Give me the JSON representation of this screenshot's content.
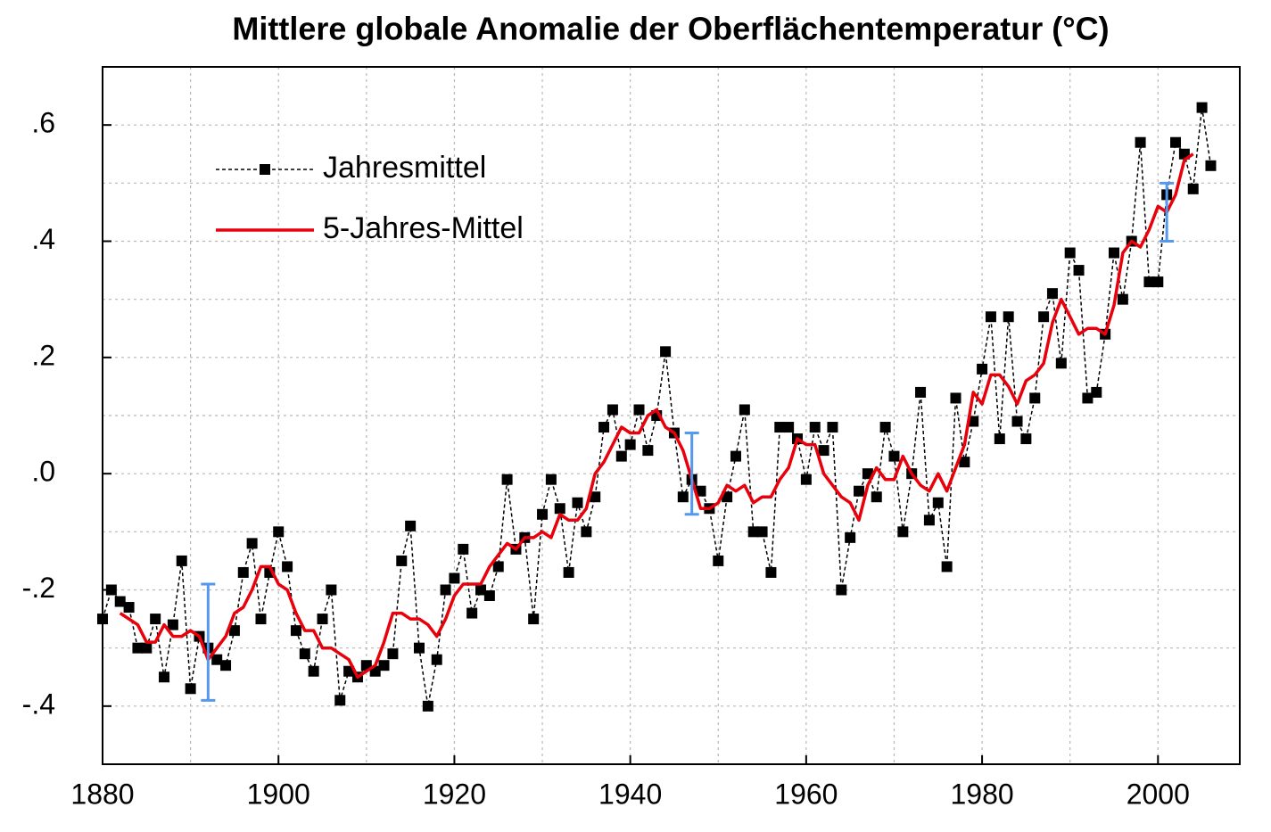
{
  "chart_data": {
    "type": "line",
    "title": "Mittlere globale Anomalie der Oberflächentemperatur (°C)",
    "x": [
      1880,
      1881,
      1882,
      1883,
      1884,
      1885,
      1886,
      1887,
      1888,
      1889,
      1890,
      1891,
      1892,
      1893,
      1894,
      1895,
      1896,
      1897,
      1898,
      1899,
      1900,
      1901,
      1902,
      1903,
      1904,
      1905,
      1906,
      1907,
      1908,
      1909,
      1910,
      1911,
      1912,
      1913,
      1914,
      1915,
      1916,
      1917,
      1918,
      1919,
      1920,
      1921,
      1922,
      1923,
      1924,
      1925,
      1926,
      1927,
      1928,
      1929,
      1930,
      1931,
      1932,
      1933,
      1934,
      1935,
      1936,
      1937,
      1938,
      1939,
      1940,
      1941,
      1942,
      1943,
      1944,
      1945,
      1946,
      1947,
      1948,
      1949,
      1950,
      1951,
      1952,
      1953,
      1954,
      1955,
      1956,
      1957,
      1958,
      1959,
      1960,
      1961,
      1962,
      1963,
      1964,
      1965,
      1966,
      1967,
      1968,
      1969,
      1970,
      1971,
      1972,
      1973,
      1974,
      1975,
      1976,
      1977,
      1978,
      1979,
      1980,
      1981,
      1982,
      1983,
      1984,
      1985,
      1986,
      1987,
      1988,
      1989,
      1990,
      1991,
      1992,
      1993,
      1994,
      1995,
      1996,
      1997,
      1998,
      1999,
      2000,
      2001,
      2002,
      2003,
      2004,
      2005,
      2006
    ],
    "series": [
      {
        "name": "Jahresmittel",
        "color": "#000000",
        "values": [
          -0.25,
          -0.2,
          -0.22,
          -0.23,
          -0.3,
          -0.3,
          -0.25,
          -0.35,
          -0.26,
          -0.15,
          -0.37,
          -0.28,
          -0.3,
          -0.32,
          -0.33,
          -0.27,
          -0.17,
          -0.12,
          -0.25,
          -0.17,
          -0.1,
          -0.16,
          -0.27,
          -0.31,
          -0.34,
          -0.25,
          -0.2,
          -0.39,
          -0.34,
          -0.35,
          -0.33,
          -0.34,
          -0.33,
          -0.31,
          -0.15,
          -0.09,
          -0.3,
          -0.4,
          -0.32,
          -0.2,
          -0.18,
          -0.13,
          -0.24,
          -0.2,
          -0.21,
          -0.16,
          -0.01,
          -0.13,
          -0.11,
          -0.25,
          -0.07,
          -0.01,
          -0.06,
          -0.17,
          -0.05,
          -0.1,
          -0.04,
          0.08,
          0.11,
          0.03,
          0.05,
          0.11,
          0.04,
          0.1,
          0.21,
          0.07,
          -0.04,
          -0.01,
          -0.03,
          -0.06,
          -0.15,
          -0.04,
          0.03,
          0.11,
          -0.1,
          -0.1,
          -0.17,
          0.08,
          0.08,
          0.06,
          -0.01,
          0.08,
          0.04,
          0.08,
          -0.2,
          -0.11,
          -0.03,
          0.0,
          -0.04,
          0.08,
          0.03,
          -0.1,
          0.0,
          0.14,
          -0.08,
          -0.05,
          -0.16,
          0.13,
          0.02,
          0.09,
          0.18,
          0.27,
          0.06,
          0.27,
          0.09,
          0.06,
          0.13,
          0.27,
          0.31,
          0.19,
          0.38,
          0.35,
          0.13,
          0.14,
          0.24,
          0.38,
          0.3,
          0.4,
          0.57,
          0.33,
          0.33,
          0.48,
          0.57,
          0.55,
          0.49,
          0.63,
          0.53
        ]
      },
      {
        "name": "5-Jahres-Mittel",
        "color": "#e8000b",
        "values": [
          null,
          null,
          -0.24,
          -0.25,
          -0.26,
          -0.29,
          -0.29,
          -0.26,
          -0.28,
          -0.28,
          -0.27,
          -0.28,
          -0.32,
          -0.3,
          -0.28,
          -0.24,
          -0.23,
          -0.2,
          -0.16,
          -0.16,
          -0.19,
          -0.2,
          -0.24,
          -0.27,
          -0.27,
          -0.3,
          -0.3,
          -0.31,
          -0.32,
          -0.35,
          -0.34,
          -0.33,
          -0.29,
          -0.24,
          -0.24,
          -0.25,
          -0.25,
          -0.26,
          -0.28,
          -0.25,
          -0.21,
          -0.19,
          -0.19,
          -0.19,
          -0.16,
          -0.14,
          -0.12,
          -0.13,
          -0.11,
          -0.11,
          -0.1,
          -0.11,
          -0.07,
          -0.08,
          -0.08,
          -0.06,
          0.0,
          0.02,
          0.05,
          0.08,
          0.07,
          0.07,
          0.1,
          0.11,
          0.08,
          0.07,
          0.04,
          -0.01,
          -0.06,
          -0.06,
          -0.05,
          -0.02,
          -0.03,
          -0.02,
          -0.05,
          -0.04,
          -0.04,
          -0.01,
          0.01,
          0.06,
          0.05,
          0.05,
          0.0,
          -0.02,
          -0.04,
          -0.05,
          -0.08,
          -0.02,
          0.01,
          -0.01,
          -0.01,
          0.03,
          0.0,
          -0.02,
          -0.03,
          0.0,
          -0.03,
          0.01,
          0.05,
          0.14,
          0.12,
          0.17,
          0.17,
          0.15,
          0.12,
          0.16,
          0.17,
          0.19,
          0.26,
          0.3,
          0.27,
          0.24,
          0.25,
          0.25,
          0.24,
          0.29,
          0.38,
          0.4,
          0.39,
          0.42,
          0.46,
          0.45,
          0.48,
          0.54,
          0.55,
          null,
          null
        ]
      }
    ],
    "error_bars": {
      "color": "#5599ee",
      "x": [
        1892,
        1947,
        2001
      ],
      "values": [
        -0.29,
        0,
        0.45
      ],
      "errors": [
        0.1,
        0.07,
        0.05
      ]
    },
    "xlim": [
      1880,
      2009.3
    ],
    "ylim": [
      -0.5,
      0.7
    ],
    "xticks": [
      1880,
      1900,
      1920,
      1940,
      1960,
      1980,
      2000
    ],
    "yticks": [
      {
        "value": 0.6,
        "label": ".6"
      },
      {
        "value": 0.4,
        "label": ".4"
      },
      {
        "value": 0.2,
        "label": ".2"
      },
      {
        "value": 0,
        "label": ".0"
      },
      {
        "value": -0.2,
        "label": "-.2"
      },
      {
        "value": -0.4,
        "label": "-.4"
      }
    ],
    "minor_xticks": [
      1890,
      1910,
      1930,
      1950,
      1970,
      1990
    ],
    "minor_yticks": [
      -0.3,
      -0.1,
      0.1,
      0.3,
      0.5
    ],
    "grid": true,
    "legend": "upper left"
  }
}
